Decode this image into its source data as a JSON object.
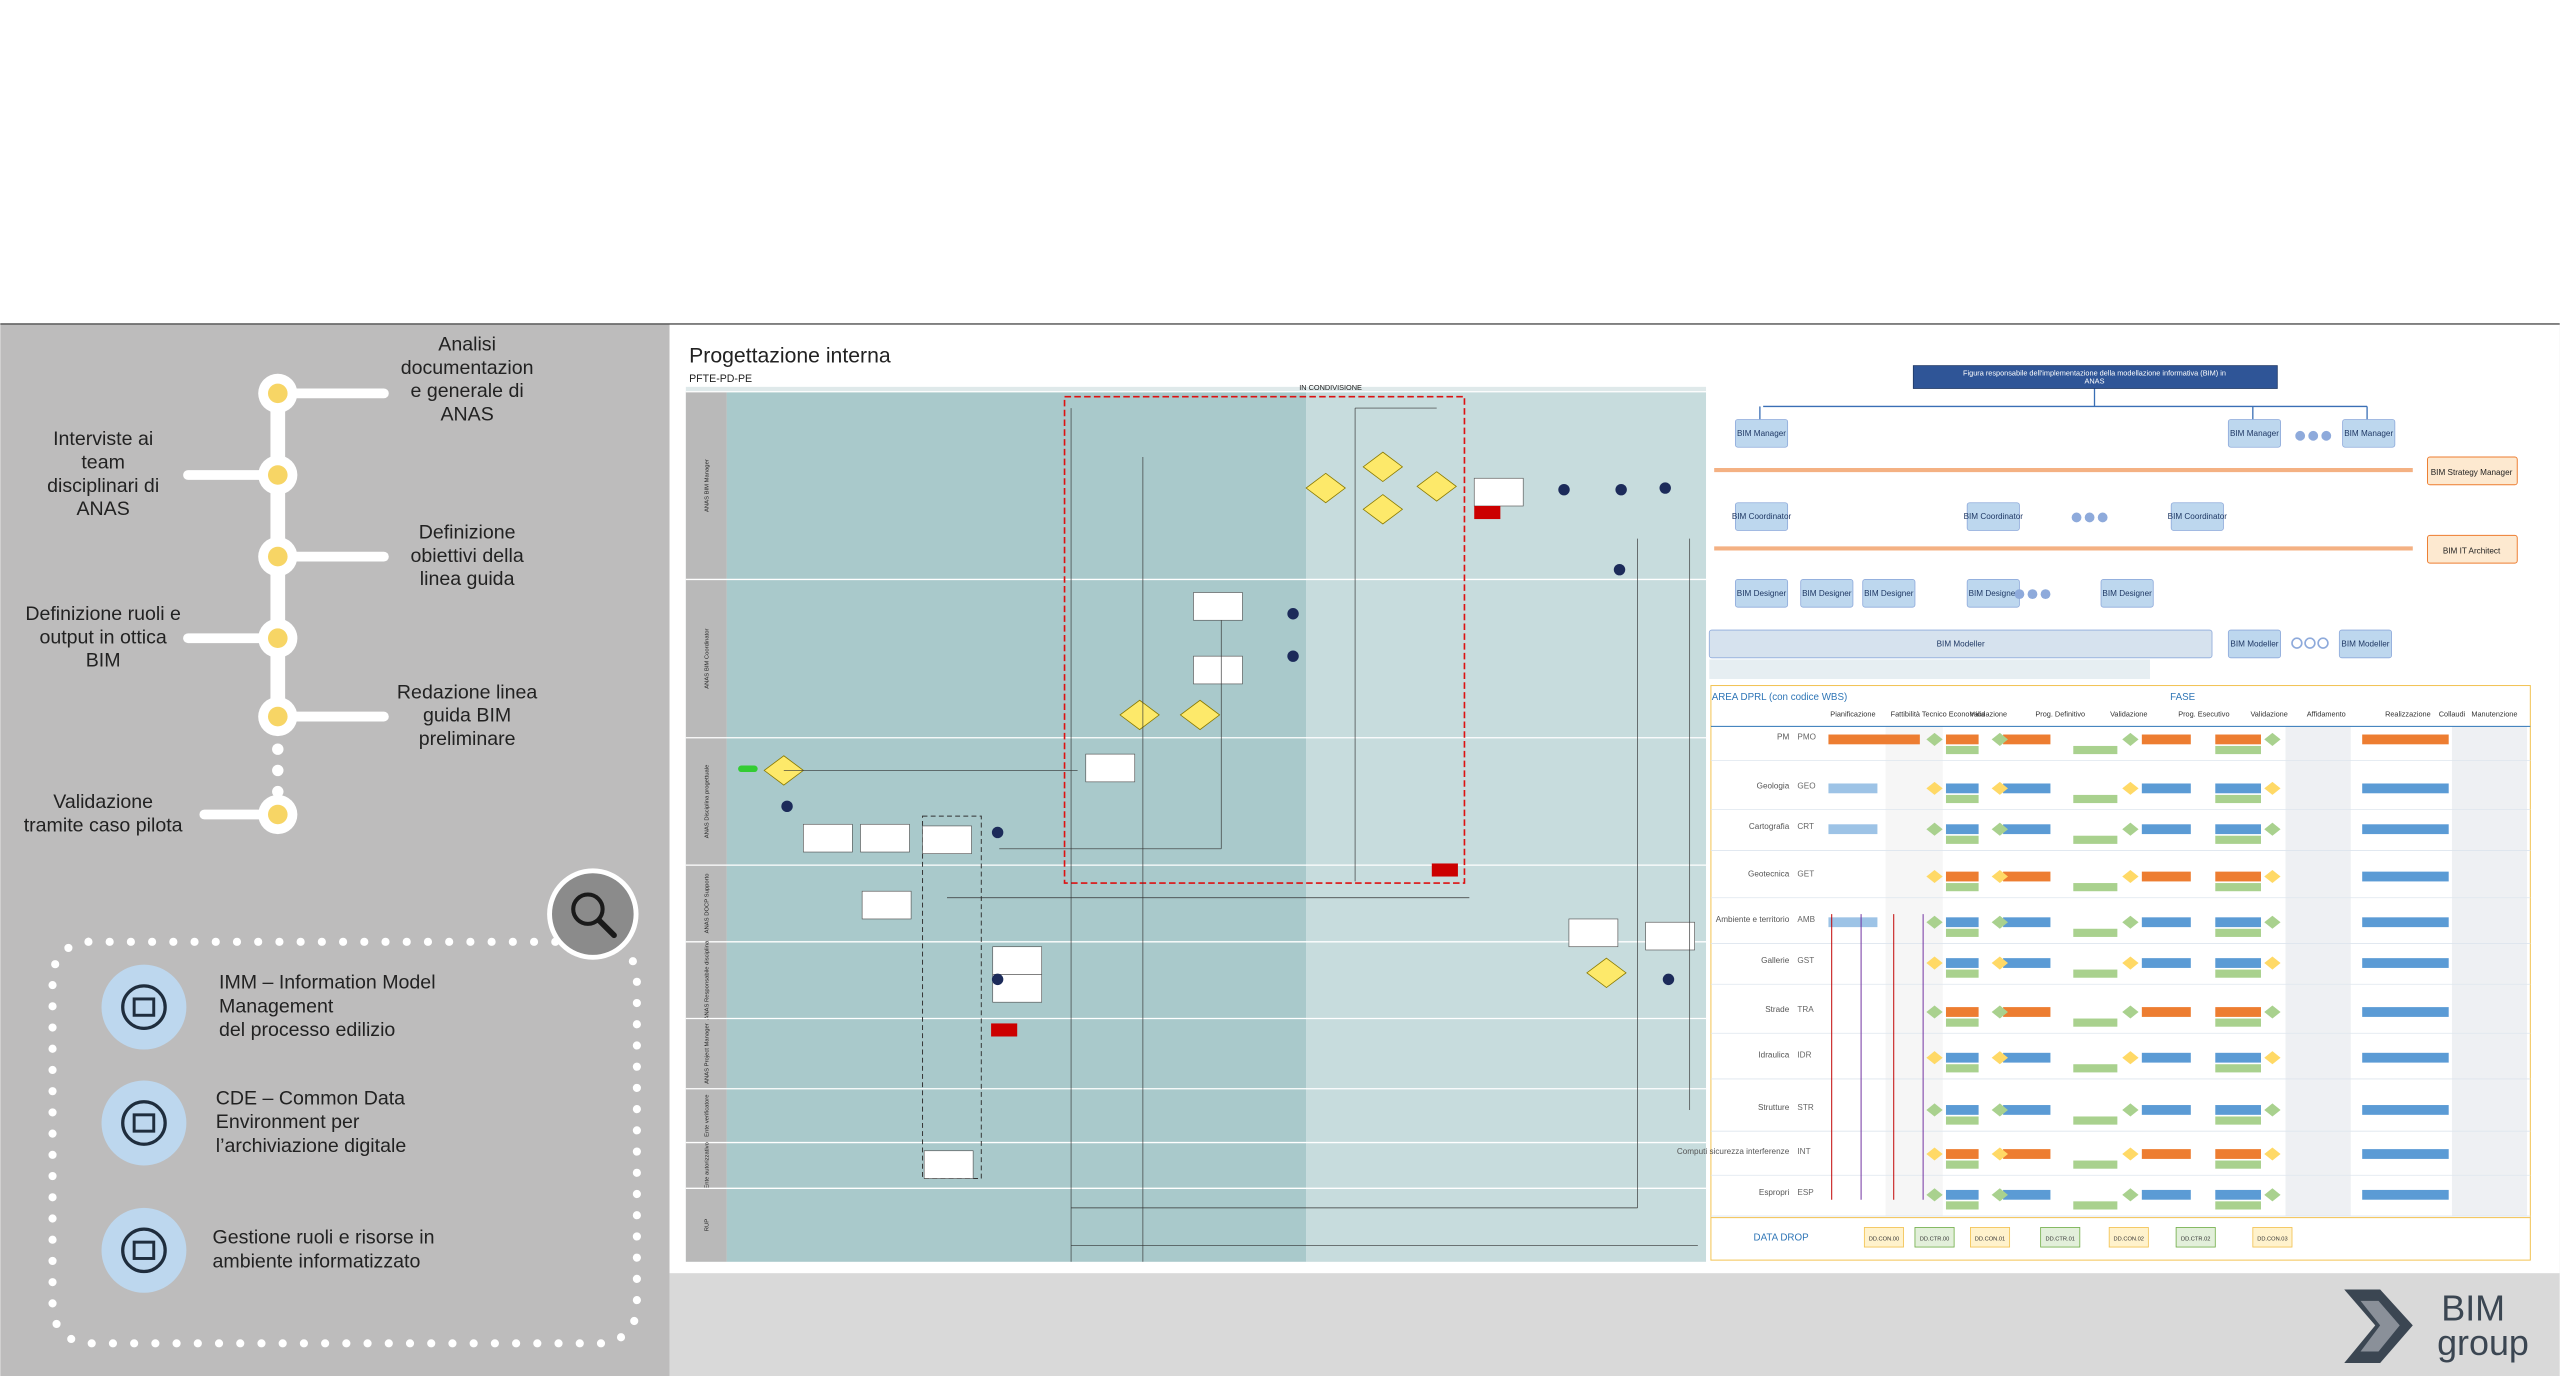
{
  "timeline": {
    "steps": [
      {
        "label": [
          "Analisi",
          "documentazion",
          "e generale di",
          "ANAS"
        ]
      },
      {
        "label": [
          "Interviste ai",
          "team",
          "disciplinari di",
          "ANAS"
        ]
      },
      {
        "label": [
          "Definizione",
          "obiettivi della",
          "linea guida"
        ]
      },
      {
        "label": [
          "Definizione ruoli e",
          "output in ottica",
          "BIM"
        ]
      },
      {
        "label": [
          "Redazione linea",
          "guida BIM",
          "preliminare"
        ]
      },
      {
        "label": [
          "Validazione",
          "tramite caso pilota"
        ]
      }
    ]
  },
  "tools": [
    {
      "label": [
        "IMM  – Information Model",
        "Management",
        "del processo edilizio"
      ]
    },
    {
      "label": [
        "CDE – Common Data",
        "Environment per",
        "l’archiviazione digitale"
      ]
    },
    {
      "label": [
        "Gestione ruoli e risorse in",
        "ambiente informatizzato"
      ]
    }
  ],
  "diagram": {
    "title": "Progettazione interna",
    "subtitle": "PFTE-PD-PE",
    "phase": "IN CONDIVISIONE",
    "lanes": [
      "ANAS BIM Manager",
      "ANAS BIM Coordinator",
      "ANAS Disciplina progettuale",
      "ANAS DOCP Supporto",
      "ANAS Responsabile disciplina",
      "ANAS Project Manager",
      "Ente verificatore",
      "Ente autorizzativo",
      "RUP"
    ]
  },
  "org_chart": {
    "title": [
      "Figura responsabile dell'implementazione della modellazione informativa (BIM) in",
      "ANAS"
    ],
    "manager": "BIM Manager",
    "coordinator": "BIM Coordinator",
    "designer": "BIM Designer",
    "modeller": "BIM Modeller",
    "strategy": "BIM Strategy Manager",
    "it": "BIM IT Architect"
  },
  "matrix": {
    "area_header": "AREA DPRL (con codice WBS)",
    "phase_header": "FASE",
    "columns": [
      "Pianificazione",
      "Fattibilità Tecnico Economica",
      "Validazione",
      "Prog. Definitivo",
      "Validazione",
      "Prog. Esecutivo",
      "Validazione",
      "Affidamento",
      "Realizzazione",
      "Collaudi",
      "Manutenzione"
    ],
    "rows": [
      {
        "name": "PM",
        "code": "PMO"
      },
      {
        "name": "Geologia",
        "code": "GEO"
      },
      {
        "name": "Cartografia",
        "code": "CRT"
      },
      {
        "name": "Geotecnica",
        "code": "GET"
      },
      {
        "name": "Ambiente e territorio",
        "code": "AMB"
      },
      {
        "name": "Gallerie",
        "code": "GST"
      },
      {
        "name": "Strade",
        "code": "TRA"
      },
      {
        "name": "Idraulica",
        "code": "IDR"
      },
      {
        "name": "Strutture",
        "code": "STR"
      },
      {
        "name": "Computi sicurezza interferenze",
        "code": "INT"
      },
      {
        "name": "Espropri",
        "code": "ESP"
      }
    ],
    "footer": "DATA DROP",
    "drops": [
      "DD.CON.00",
      "DD.CTR.00",
      "DD.CON.01",
      "DD.CTR.01",
      "DD.CON.02",
      "DD.CTR.02",
      "DD.CON.03"
    ]
  },
  "logo": {
    "line1": "BIM",
    "line2": "group"
  }
}
